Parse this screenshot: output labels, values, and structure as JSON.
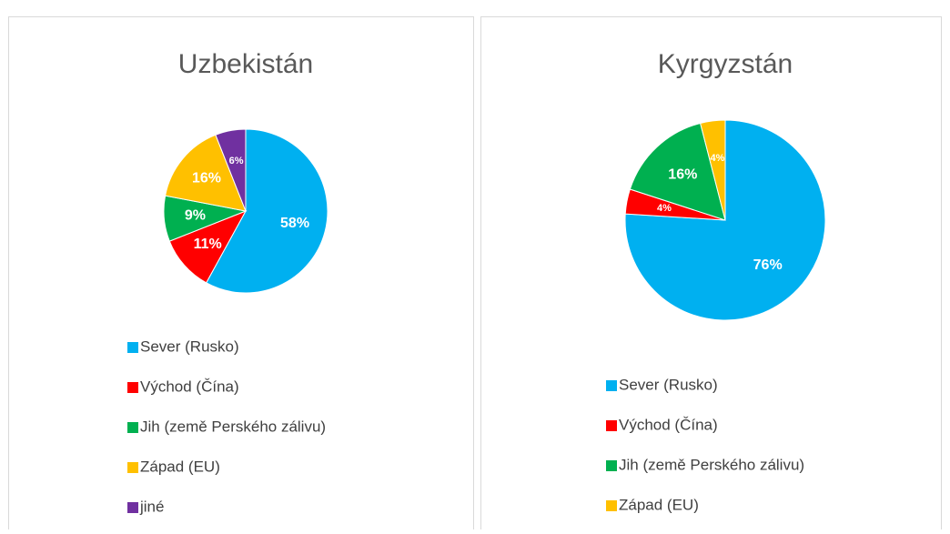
{
  "chart_data": [
    {
      "type": "pie",
      "title": "Uzbekistán",
      "categories": [
        "Sever (Rusko)",
        "Východ (Čína)",
        "Jih (země Perského zálivu)",
        "Západ (EU)",
        "jiné"
      ],
      "values": [
        58,
        11,
        9,
        16,
        6
      ],
      "value_labels": [
        "58%",
        "11%",
        "9%",
        "16%",
        "6%"
      ],
      "colors": [
        "#00b0f0",
        "#ff0000",
        "#00b050",
        "#ffc000",
        "#7030a0"
      ],
      "legend": "bottom"
    },
    {
      "type": "pie",
      "title": "Kyrgyzstán",
      "categories": [
        "Sever (Rusko)",
        "Východ (Čína)",
        "Jih (země Perského zálivu)",
        "Západ (EU)"
      ],
      "values": [
        76,
        4,
        16,
        4
      ],
      "value_labels": [
        "76%",
        "4%",
        "16%",
        "4%"
      ],
      "colors": [
        "#00b0f0",
        "#ff0000",
        "#00b050",
        "#ffc000"
      ],
      "legend": "bottom"
    }
  ]
}
